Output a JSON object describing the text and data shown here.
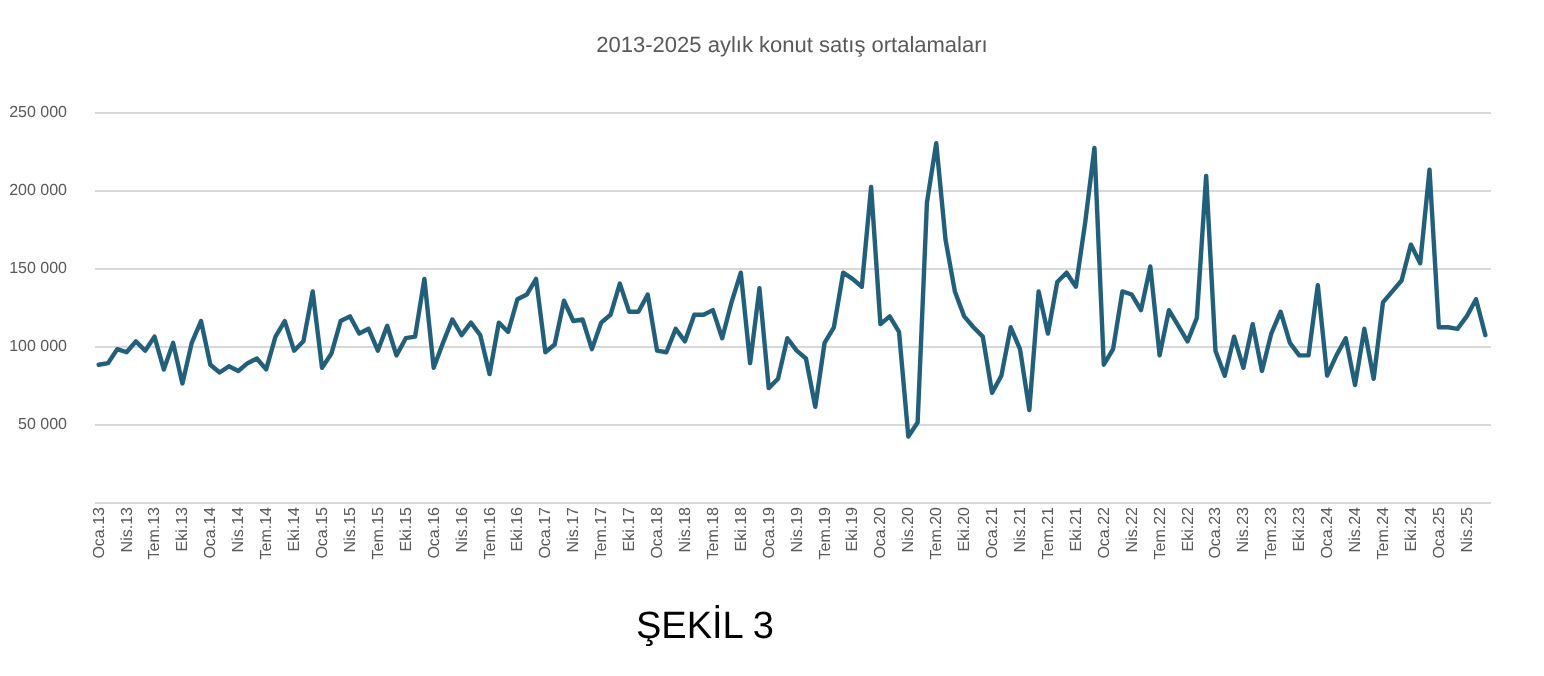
{
  "chart_data": {
    "type": "line",
    "title": "2013-2025 aylık konut satış ortalamaları",
    "categories": [
      "Oca.13",
      null,
      null,
      "Nis.13",
      null,
      null,
      "Tem.13",
      null,
      null,
      "Eki.13",
      null,
      null,
      "Oca.14",
      null,
      null,
      "Nis.14",
      null,
      null,
      "Tem.14",
      null,
      null,
      "Eki.14",
      null,
      null,
      "Oca.15",
      null,
      null,
      "Nis.15",
      null,
      null,
      "Tem.15",
      null,
      null,
      "Eki.15",
      null,
      null,
      "Oca.16",
      null,
      null,
      "Nis.16",
      null,
      null,
      "Tem.16",
      null,
      null,
      "Eki.16",
      null,
      null,
      "Oca.17",
      null,
      null,
      "Nis.17",
      null,
      null,
      "Tem.17",
      null,
      null,
      "Eki.17",
      null,
      null,
      "Oca.18",
      null,
      null,
      "Nis.18",
      null,
      null,
      "Tem.18",
      null,
      null,
      "Eki.18",
      null,
      null,
      "Oca.19",
      null,
      null,
      "Nis.19",
      null,
      null,
      "Tem.19",
      null,
      null,
      "Eki.19",
      null,
      null,
      "Oca.20",
      null,
      null,
      "Nis.20",
      null,
      null,
      "Tem.20",
      null,
      null,
      "Eki.20",
      null,
      null,
      "Oca.21",
      null,
      null,
      "Nis.21",
      null,
      null,
      "Tem.21",
      null,
      null,
      "Eki.21",
      null,
      null,
      "Oca.22",
      null,
      null,
      "Nis.22",
      null,
      null,
      "Tem.22",
      null,
      null,
      "Eki.22",
      null,
      null,
      "Oca.23",
      null,
      null,
      "Nis.23",
      null,
      null,
      "Tem.23",
      null,
      null,
      "Eki.23",
      null,
      null,
      "Oca.24",
      null,
      null,
      "Nis.24",
      null,
      null,
      "Tem.24",
      null,
      null,
      "Eki.24",
      null,
      null,
      "Oca.25",
      null,
      null,
      "Nis.25",
      null,
      null
    ],
    "series": [
      {
        "color": "#215f7a",
        "values": [
          88000,
          89000,
          98000,
          96000,
          103000,
          97000,
          106000,
          85000,
          102000,
          76000,
          102000,
          116000,
          88000,
          83000,
          87000,
          84000,
          89000,
          92000,
          85000,
          106000,
          116000,
          97000,
          103000,
          135000,
          86000,
          95000,
          116000,
          119000,
          108000,
          111000,
          97000,
          113000,
          94000,
          105000,
          106000,
          143000,
          86000,
          102000,
          117000,
          107000,
          115000,
          107000,
          82000,
          115000,
          109000,
          130000,
          133000,
          143000,
          96000,
          101000,
          129000,
          116000,
          117000,
          98000,
          115000,
          120000,
          140000,
          122000,
          122000,
          133000,
          97000,
          96000,
          111000,
          103000,
          120000,
          120000,
          123000,
          105000,
          128000,
          147000,
          89000,
          137000,
          73000,
          79000,
          105000,
          97000,
          92000,
          61000,
          102000,
          112000,
          147000,
          143000,
          138000,
          202000,
          114000,
          119000,
          109000,
          42000,
          51000,
          192000,
          230000,
          168000,
          135000,
          119000,
          112000,
          106000,
          70000,
          81000,
          112000,
          98000,
          59000,
          135000,
          108000,
          141000,
          147000,
          138000,
          179000,
          227000,
          88000,
          98000,
          135000,
          133000,
          123000,
          151000,
          94000,
          123000,
          113000,
          103000,
          118000,
          209000,
          97000,
          81000,
          106000,
          86000,
          114000,
          84000,
          108000,
          122000,
          102000,
          94000,
          94000,
          139000,
          81000,
          94000,
          105000,
          75000,
          111000,
          79000,
          128000,
          135000,
          142000,
          165000,
          153000,
          213000,
          112000,
          112000,
          111000,
          119000,
          130000,
          107000
        ]
      }
    ],
    "ylim": [
      0,
      250000
    ],
    "yticks": [
      {
        "value": 0,
        "label": null
      },
      {
        "value": 50000,
        "label": "50 000"
      },
      {
        "value": 100000,
        "label": "100 000"
      },
      {
        "value": 150000,
        "label": "150 000"
      },
      {
        "value": 200000,
        "label": "200 000"
      },
      {
        "value": 250000,
        "label": "250 000"
      }
    ],
    "grid": "y",
    "annotations": [
      "ŞEKİL 3"
    ]
  }
}
